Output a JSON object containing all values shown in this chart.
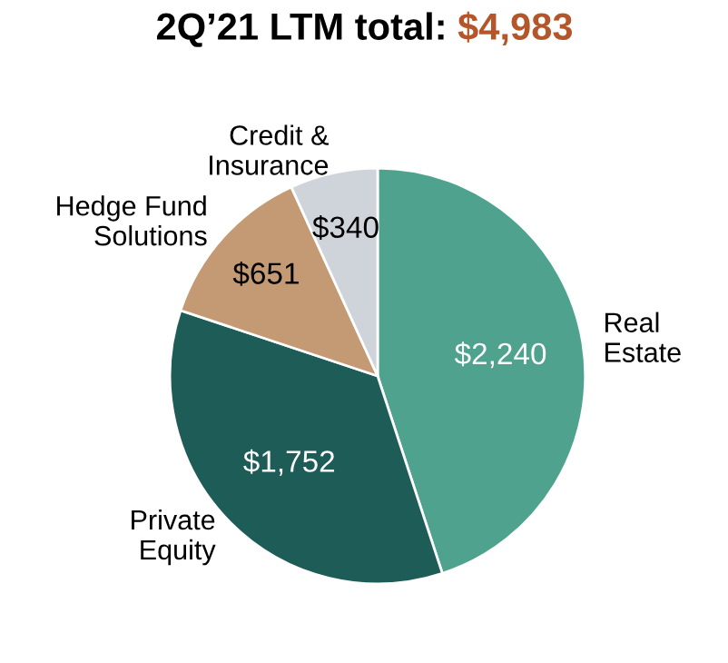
{
  "chart_data": {
    "type": "pie",
    "title": "2Q’21 LTM total:",
    "subtitle": "$4,983",
    "categories": [
      "Real\nEstate",
      "Private\nEquity",
      "Hedge Fund\nSolutions",
      "Credit &\nInsurance"
    ],
    "values": [
      2240,
      1752,
      651,
      340
    ],
    "colors": [
      "#4fa38e",
      "#1e5c58",
      "#c49a74",
      "#cfd3da"
    ],
    "value_labels": [
      "$2,240",
      "$1,752",
      "$651",
      "$340"
    ]
  }
}
